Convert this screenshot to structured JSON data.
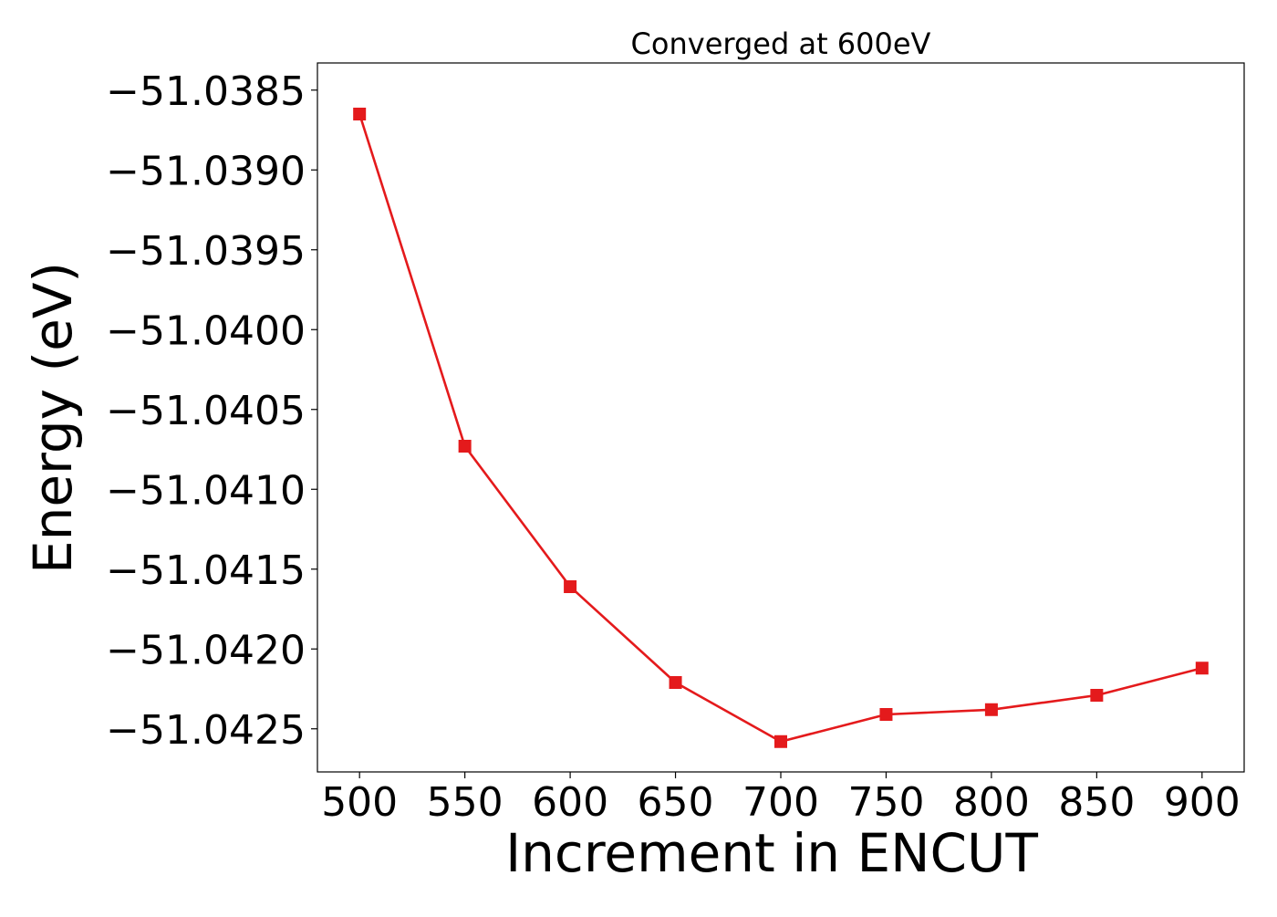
{
  "chart_data": {
    "type": "line",
    "title": "Converged at 600eV",
    "xlabel": "Increment in ENCUT",
    "ylabel": "Energy (eV)",
    "x": [
      500,
      550,
      600,
      650,
      700,
      750,
      800,
      850,
      900
    ],
    "series": [
      {
        "values": [
          -51.03865,
          -51.04073,
          -51.04161,
          -51.04221,
          -51.04258,
          -51.04241,
          -51.04238,
          -51.04229,
          -51.04212
        ],
        "color": "#e41a1c",
        "marker": "square"
      }
    ],
    "xticks": [
      500,
      550,
      600,
      650,
      700,
      750,
      800,
      850,
      900
    ],
    "xtick_labels": [
      "500",
      "550",
      "600",
      "650",
      "700",
      "750",
      "800",
      "850",
      "900"
    ],
    "yticks": [
      -51.0385,
      -51.039,
      -51.0395,
      -51.04,
      -51.0405,
      -51.041,
      -51.0415,
      -51.042,
      -51.0425
    ],
    "ytick_labels": [
      "−51.0385",
      "−51.0390",
      "−51.0395",
      "−51.0400",
      "−51.0405",
      "−51.0410",
      "−51.0415",
      "−51.0420",
      "−51.0425"
    ],
    "xlim": [
      480,
      920
    ],
    "ylim": [
      -51.04277,
      -51.03833
    ],
    "grid": false,
    "legend": "none"
  }
}
